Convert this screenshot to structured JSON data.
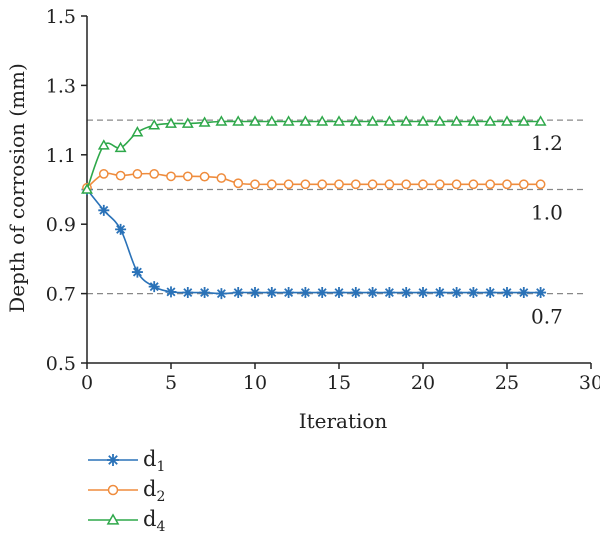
{
  "chart_data": {
    "type": "line",
    "title": "",
    "xlabel": "Iteration",
    "ylabel": "Depth of corrosion (mm)",
    "xlim": [
      0,
      30
    ],
    "ylim": [
      0.5,
      1.5
    ],
    "x_ticks": [
      0,
      5,
      10,
      15,
      20,
      25,
      30
    ],
    "y_ticks": [
      0.5,
      0.7,
      0.9,
      1.1,
      1.3,
      1.5
    ],
    "x_tick_labels": [
      "0",
      "5",
      "10",
      "15",
      "20",
      "25",
      "30"
    ],
    "y_tick_labels": [
      "0.5",
      "0.7",
      "0.9",
      "1.1",
      "1.3",
      "1.5"
    ],
    "grid": false,
    "legend_position": "bottom-left",
    "reference_lines": [
      {
        "y": 1.2,
        "label": "1.2"
      },
      {
        "y": 1.0,
        "label": "1.0"
      },
      {
        "y": 0.7,
        "label": "0.7"
      }
    ],
    "x": [
      0,
      1,
      2,
      3,
      4,
      5,
      6,
      7,
      8,
      9,
      10,
      11,
      12,
      13,
      14,
      15,
      16,
      17,
      18,
      19,
      20,
      21,
      22,
      23,
      24,
      25,
      26,
      27
    ],
    "series": [
      {
        "name": "d",
        "subscript": "1",
        "color": "#2a72b8",
        "marker": "asterisk",
        "values": [
          1.0,
          0.94,
          0.885,
          0.762,
          0.72,
          0.705,
          0.703,
          0.703,
          0.7,
          0.703,
          0.703,
          0.703,
          0.703,
          0.703,
          0.703,
          0.703,
          0.703,
          0.703,
          0.703,
          0.703,
          0.703,
          0.703,
          0.703,
          0.703,
          0.703,
          0.703,
          0.703,
          0.703
        ]
      },
      {
        "name": "d",
        "subscript": "2",
        "color": "#ef8c3d",
        "marker": "circle",
        "values": [
          1.005,
          1.045,
          1.04,
          1.045,
          1.045,
          1.038,
          1.038,
          1.037,
          1.033,
          1.018,
          1.015,
          1.015,
          1.015,
          1.015,
          1.015,
          1.015,
          1.015,
          1.015,
          1.015,
          1.015,
          1.015,
          1.015,
          1.015,
          1.015,
          1.015,
          1.015,
          1.015,
          1.015
        ]
      },
      {
        "name": "d",
        "subscript": "4",
        "color": "#2ea84a",
        "marker": "triangle",
        "values": [
          1.0,
          1.127,
          1.12,
          1.165,
          1.185,
          1.19,
          1.19,
          1.193,
          1.196,
          1.196,
          1.196,
          1.196,
          1.196,
          1.196,
          1.196,
          1.196,
          1.196,
          1.196,
          1.196,
          1.196,
          1.196,
          1.196,
          1.196,
          1.196,
          1.196,
          1.196,
          1.196,
          1.196
        ]
      }
    ]
  }
}
